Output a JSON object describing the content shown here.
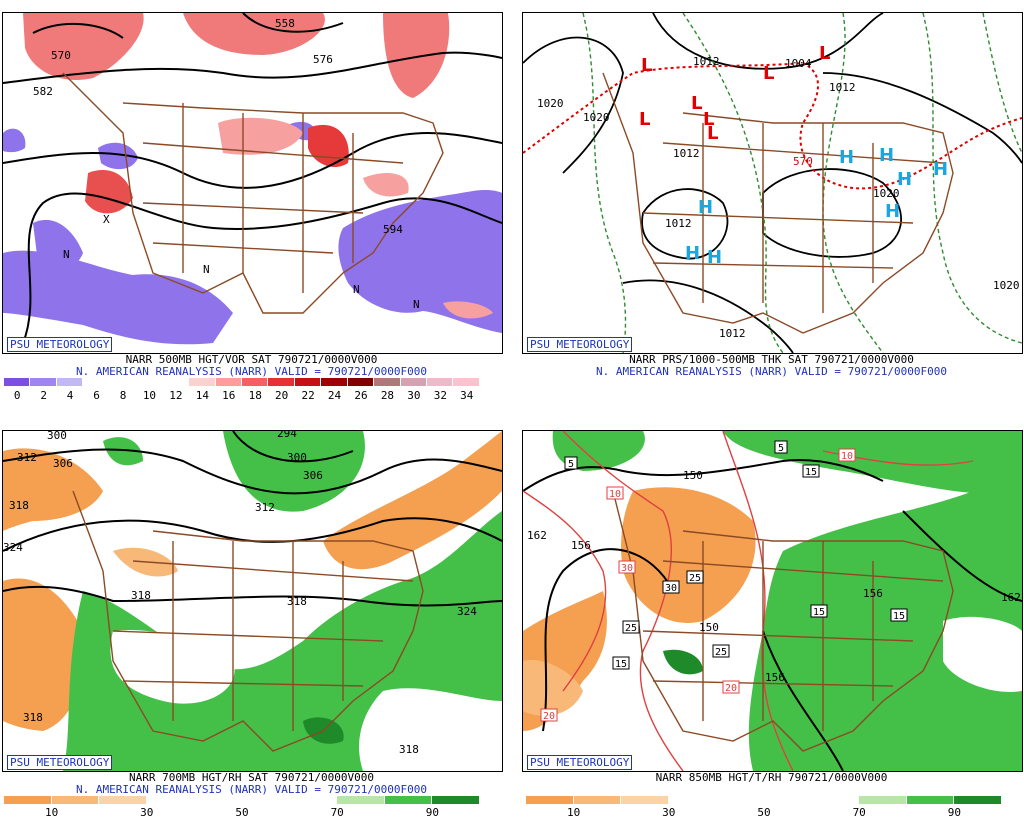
{
  "panels": [
    {
      "id": "p1",
      "brand": "PSU METEOROLOGY",
      "caption_line1": "NARR 500MB HGT/VOR SAT 790721/0000V000",
      "caption_line2": "N. AMERICAN REANALYSIS (NARR) VALID = 790721/0000F000",
      "scale_colors": [
        "#7b4fe0",
        "#9f86ef",
        "#c2b8f6",
        "#ffffff",
        "#ffffff",
        "#ffffff",
        "#ffffff",
        "#ffd0d0",
        "#ff9c9c",
        "#f86060",
        "#e83030",
        "#c81010",
        "#a00000",
        "#800000",
        "#b07878",
        "#d8a0b0",
        "#f0b8c8",
        "#ffc0d0"
      ],
      "scale_ticks": [
        "0",
        "2",
        "4",
        "6",
        "8",
        "10",
        "12",
        "14",
        "16",
        "18",
        "20",
        "22",
        "24",
        "26",
        "28",
        "30",
        "32",
        "34"
      ],
      "map_labels": [
        "570",
        "582",
        "558",
        "576",
        "594",
        "N",
        "N",
        "N",
        "N",
        "X"
      ]
    },
    {
      "id": "p2",
      "brand": "PSU METEOROLOGY",
      "caption_line1": "NARR PRS/1000-500MB THK SAT 790721/0000V000",
      "caption_line2": "N. AMERICAN REANALYSIS (NARR) VALID = 790721/0000F000",
      "map_labels": [
        "1020",
        "1012",
        "1004",
        "1012",
        "1020",
        "1012",
        "1012",
        "1020",
        "1012",
        "570",
        "L",
        "H"
      ]
    },
    {
      "id": "p3",
      "brand": "PSU METEOROLOGY",
      "caption_line1": "NARR 700MB HGT/RH SAT 790721/0000V000",
      "caption_line2": "N. AMERICAN REANALYSIS (NARR) VALID = 790721/0000F000",
      "scale_colors": [
        "#f4a050",
        "#f7b878",
        "#fbd3a6",
        "#ffffff",
        "#ffffff",
        "#ffffff",
        "#ffffff",
        "#b8e6a8",
        "#44c048",
        "#1e8a2a"
      ],
      "scale_ticks": [
        "10",
        "30",
        "50",
        "70",
        "90"
      ],
      "map_labels": [
        "300",
        "312",
        "306",
        "318",
        "324",
        "294",
        "300",
        "306",
        "312",
        "318",
        "318",
        "324",
        "318",
        "318"
      ]
    },
    {
      "id": "p4",
      "brand": "PSU METEOROLOGY",
      "caption_line1": "NARR 850MB HGT/T/RH 790721/0000V000",
      "scale_colors": [
        "#f4a050",
        "#f7b878",
        "#fbd3a6",
        "#ffffff",
        "#ffffff",
        "#ffffff",
        "#ffffff",
        "#b8e6a8",
        "#44c048",
        "#1e8a2a"
      ],
      "scale_ticks": [
        "10",
        "30",
        "50",
        "70",
        "90"
      ],
      "map_labels": [
        "162",
        "156",
        "150",
        "156",
        "162",
        "150",
        "156",
        "5",
        "5",
        "15",
        "15",
        "15",
        "15",
        "20",
        "20",
        "20",
        "25",
        "25",
        "25",
        "25",
        "30",
        "30",
        "30",
        "10",
        "10"
      ]
    }
  ]
}
